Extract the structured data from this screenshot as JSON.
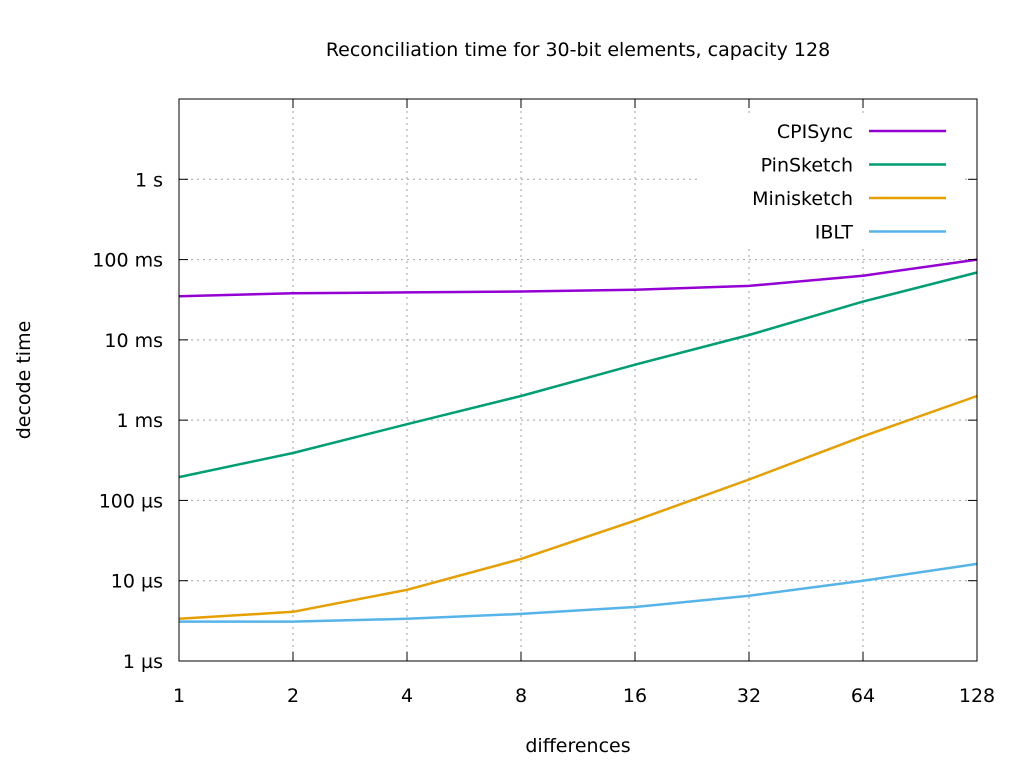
{
  "chart_data": {
    "type": "line",
    "title": "Reconciliation time for 30-bit elements, capacity 128",
    "xlabel": "differences",
    "ylabel": "decode time",
    "x_scale": "log2",
    "y_scale": "log10",
    "xlim": [
      1,
      128
    ],
    "ylim_seconds": [
      1e-06,
      10
    ],
    "grid": true,
    "legend_position": "top-right",
    "x_ticks": [
      {
        "value": 1,
        "label": "1"
      },
      {
        "value": 2,
        "label": "2"
      },
      {
        "value": 4,
        "label": "4"
      },
      {
        "value": 8,
        "label": "8"
      },
      {
        "value": 16,
        "label": "16"
      },
      {
        "value": 32,
        "label": "32"
      },
      {
        "value": 64,
        "label": "64"
      },
      {
        "value": 128,
        "label": "128"
      }
    ],
    "y_ticks": [
      {
        "value": 1e-06,
        "label": "1 µs"
      },
      {
        "value": 1e-05,
        "label": "10 µs"
      },
      {
        "value": 0.0001,
        "label": "100 µs"
      },
      {
        "value": 0.001,
        "label": "1 ms"
      },
      {
        "value": 0.01,
        "label": "10 ms"
      },
      {
        "value": 0.1,
        "label": "100 ms"
      },
      {
        "value": 1,
        "label": "1 s"
      }
    ],
    "x": [
      1,
      2,
      4,
      8,
      16,
      32,
      64,
      128
    ],
    "series": [
      {
        "name": "CPISync",
        "color": "#9400d3",
        "values_seconds": [
          0.035,
          0.038,
          0.039,
          0.04,
          0.042,
          0.047,
          0.063,
          0.1
        ]
      },
      {
        "name": "PinSketch",
        "color": "#009e73",
        "values_seconds": [
          0.000195,
          0.00039,
          0.00089,
          0.002,
          0.0049,
          0.0115,
          0.03,
          0.069
        ]
      },
      {
        "name": "Minisketch",
        "color": "#e69f00",
        "values_seconds": [
          3.35e-06,
          4.1e-06,
          7.7e-06,
          1.87e-05,
          5.6e-05,
          0.000182,
          0.00063,
          0.002
        ]
      },
      {
        "name": "IBLT",
        "color": "#56b4e9",
        "values_seconds": [
          3.1e-06,
          3.1e-06,
          3.35e-06,
          3.86e-06,
          4.7e-06,
          6.5e-06,
          1e-05,
          1.62e-05
        ]
      }
    ]
  }
}
